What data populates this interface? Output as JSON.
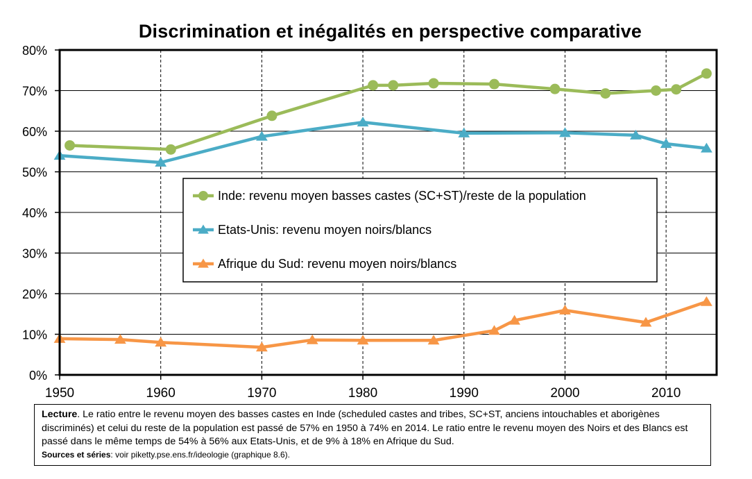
{
  "chart_data": {
    "type": "line",
    "title": "Discrimination et inégalités en perspective comparative",
    "x_ticks": [
      "1950",
      "1960",
      "1970",
      "1980",
      "1990",
      "2000",
      "2010"
    ],
    "y_ticks": [
      "0%",
      "10%",
      "20%",
      "30%",
      "40%",
      "50%",
      "60%",
      "70%",
      "80%"
    ],
    "xlim": [
      1950,
      2015
    ],
    "ylim": [
      0,
      80
    ],
    "grid": true,
    "legend_position": "center",
    "series": [
      {
        "name": "Inde: revenu moyen basses castes (SC+ST)/reste de la population",
        "color": "#9BBB59",
        "marker": "circle",
        "points": [
          [
            1951,
            56.5
          ],
          [
            1961,
            55.5
          ],
          [
            1971,
            63.8
          ],
          [
            1981,
            71.3
          ],
          [
            1983,
            71.3
          ],
          [
            1987,
            71.8
          ],
          [
            1993,
            71.6
          ],
          [
            1999,
            70.4
          ],
          [
            2004,
            69.3
          ],
          [
            2009,
            70.0
          ],
          [
            2011,
            70.3
          ],
          [
            2014,
            74.2
          ]
        ]
      },
      {
        "name": "Etats-Unis: revenu moyen noirs/blancs",
        "color": "#4BACC6",
        "marker": "triangle",
        "points": [
          [
            1950,
            54.0
          ],
          [
            1960,
            52.3
          ],
          [
            1970,
            58.7
          ],
          [
            1980,
            62.2
          ],
          [
            1990,
            59.5
          ],
          [
            2000,
            59.6
          ],
          [
            2007,
            59.0
          ],
          [
            2010,
            56.9
          ],
          [
            2014,
            55.8
          ]
        ]
      },
      {
        "name": "Afrique du Sud: revenu moyen noirs/blancs",
        "color": "#F79646",
        "marker": "triangle",
        "points": [
          [
            1950,
            8.9
          ],
          [
            1956,
            8.7
          ],
          [
            1960,
            8.0
          ],
          [
            1970,
            6.8
          ],
          [
            1975,
            8.6
          ],
          [
            1980,
            8.5
          ],
          [
            1987,
            8.5
          ],
          [
            1993,
            10.9
          ],
          [
            1995,
            13.4
          ],
          [
            2000,
            15.9
          ],
          [
            2008,
            12.9
          ],
          [
            2014,
            18.0
          ]
        ]
      }
    ]
  },
  "note": {
    "lead_label": "Lecture",
    "lead_text": ". Le ratio entre le revenu moyen des basses castes en Inde (scheduled castes and tribes, SC+ST, anciens intouchables et aborigènes discriminés) et celui du reste de la population est passé de 57% en 1950 à 74% en 2014. Le ratio entre le revenu moyen des Noirs et des Blancs est passé dans le même temps de 54% à 56% aux Etats-Unis, et de 9% à 18% en Afrique du Sud.",
    "sources_label": "Sources et séries",
    "sources_text": ": voir piketty.pse.ens.fr/ideologie (graphique 8.6)."
  }
}
